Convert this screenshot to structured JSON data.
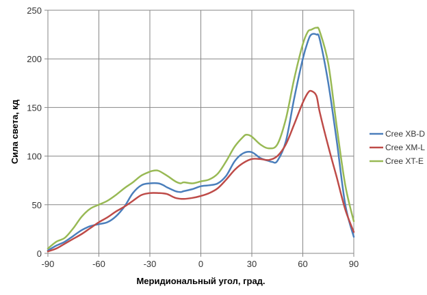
{
  "chart_data": {
    "type": "line",
    "title": "",
    "xlabel": "Меридиональный  угол, град.",
    "ylabel": "Сила света, кд",
    "xlim": [
      -90,
      90
    ],
    "ylim": [
      0,
      250
    ],
    "xticks": [
      -90,
      -60,
      -30,
      0,
      30,
      60,
      90
    ],
    "yticks": [
      0,
      50,
      100,
      150,
      200,
      250
    ],
    "grid": true,
    "legend_position": "right",
    "series": [
      {
        "name": "Cree XB-D",
        "color": "#4a7ebb",
        "x": [
          -90,
          -85,
          -80,
          -75,
          -70,
          -65,
          -60,
          -55,
          -50,
          -45,
          -40,
          -35,
          -30,
          -25,
          -22,
          -20,
          -15,
          -12,
          -10,
          -5,
          0,
          5,
          10,
          15,
          20,
          25,
          30,
          35,
          40,
          42,
          45,
          50,
          55,
          60,
          63,
          65,
          68,
          70,
          75,
          80,
          85,
          90
        ],
        "y": [
          3,
          8,
          12,
          18,
          24,
          28,
          30,
          32,
          38,
          48,
          62,
          70,
          72,
          72,
          70,
          68,
          64,
          63,
          64,
          66,
          69,
          70,
          72,
          80,
          95,
          103,
          104,
          98,
          95,
          94,
          95,
          115,
          160,
          200,
          218,
          225,
          225,
          220,
          175,
          115,
          50,
          17
        ]
      },
      {
        "name": "Cree XM-L",
        "color": "#be4b48",
        "x": [
          -90,
          -85,
          -80,
          -75,
          -70,
          -65,
          -60,
          -55,
          -50,
          -45,
          -40,
          -35,
          -30,
          -25,
          -20,
          -15,
          -10,
          -5,
          0,
          5,
          10,
          15,
          20,
          25,
          30,
          35,
          40,
          45,
          50,
          55,
          60,
          63,
          65,
          68,
          70,
          75,
          80,
          85,
          90
        ],
        "y": [
          2,
          5,
          10,
          15,
          20,
          26,
          32,
          37,
          43,
          48,
          54,
          60,
          62,
          62,
          61,
          57,
          56,
          57,
          59,
          62,
          67,
          76,
          86,
          93,
          97,
          97,
          96,
          100,
          112,
          133,
          155,
          165,
          167,
          162,
          145,
          110,
          78,
          45,
          22
        ]
      },
      {
        "name": "Cree XT-E",
        "color": "#98b954",
        "x": [
          -90,
          -85,
          -80,
          -75,
          -70,
          -65,
          -60,
          -55,
          -50,
          -45,
          -40,
          -35,
          -30,
          -28,
          -25,
          -20,
          -15,
          -12,
          -10,
          -5,
          0,
          5,
          10,
          15,
          20,
          25,
          27,
          30,
          35,
          40,
          45,
          50,
          55,
          60,
          63,
          65,
          68,
          70,
          75,
          80,
          85,
          90
        ],
        "y": [
          5,
          12,
          16,
          26,
          38,
          46,
          50,
          54,
          60,
          67,
          73,
          80,
          84,
          85,
          85,
          80,
          74,
          72,
          73,
          72,
          74,
          76,
          82,
          95,
          110,
          120,
          122,
          120,
          112,
          108,
          112,
          138,
          180,
          215,
          228,
          230,
          232,
          228,
          195,
          130,
          70,
          33
        ]
      }
    ]
  }
}
